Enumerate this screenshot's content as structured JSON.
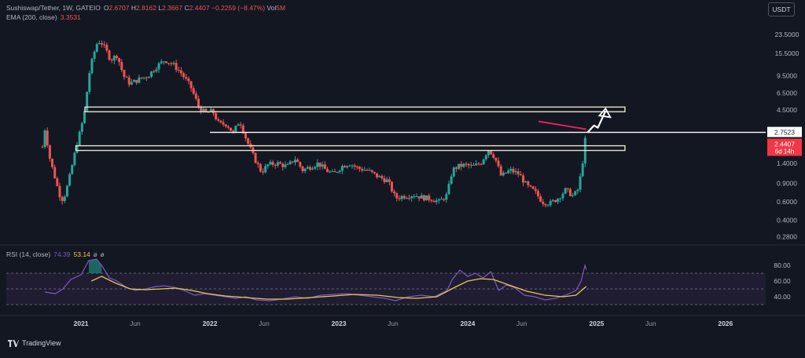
{
  "header": {
    "symbol": "Sushiswap/Tether, 1W, GATEIO",
    "ohlc": [
      {
        "k": "O",
        "v": "2.6707"
      },
      {
        "k": "H",
        "v": "2.8162"
      },
      {
        "k": "L",
        "v": "2.3667"
      },
      {
        "k": "C",
        "v": "2.4407"
      },
      {
        "k": "",
        "v": "−0.2259 (−8.47%)"
      },
      {
        "k": "Vol",
        "v": "5M"
      }
    ],
    "ema_label": "EMA (200, close)",
    "ema_value": "3.3531",
    "currency": "USDT"
  },
  "brand": {
    "name": "TradingView"
  },
  "colors": {
    "background": "#131722",
    "up": "#26a69a",
    "down": "#ef5350",
    "rsi_line": "#7e57c2",
    "rsi_ma": "#e7c74c",
    "rsi_band": "#2a2140",
    "level_line": "#ffffff",
    "annotation_line": "#e91e63",
    "price_tag_red": "#f23645"
  },
  "chart_data": [
    {
      "type": "candlestick",
      "title": "Sushiswap/Tether, 1W, GATEIO",
      "y_scale": "log",
      "y_ticks": [
        "23.5000",
        "15.5000",
        "9.5000",
        "6.5000",
        "4.5000",
        "2.7523",
        "1.4000",
        "0.9000",
        "0.6000",
        "0.4000",
        "0.2800"
      ],
      "x_ticks": [
        "2021",
        "Jun",
        "2022",
        "Jun",
        "2023",
        "Jun",
        "2024",
        "Jun",
        "2025",
        "Jun",
        "2026"
      ],
      "x_tick_dates": [
        2021.0,
        2021.42,
        2022.0,
        2022.42,
        2023.0,
        2023.42,
        2024.0,
        2024.42,
        2025.0,
        2025.42,
        2026.0
      ],
      "ylim": [
        0.25,
        32
      ],
      "xlim": [
        2020.42,
        2026.3
      ],
      "price_points": [
        [
          2020.7,
          2.0
        ],
        [
          2020.72,
          3.0
        ],
        [
          2020.76,
          1.5
        ],
        [
          2020.8,
          1.0
        ],
        [
          2020.83,
          0.72
        ],
        [
          2020.86,
          0.62
        ],
        [
          2020.9,
          0.9
        ],
        [
          2020.94,
          1.5
        ],
        [
          2020.97,
          2.2
        ],
        [
          2021.0,
          3.0
        ],
        [
          2021.03,
          4.5
        ],
        [
          2021.06,
          9.5
        ],
        [
          2021.09,
          14
        ],
        [
          2021.12,
          19
        ],
        [
          2021.15,
          20.5
        ],
        [
          2021.19,
          17
        ],
        [
          2021.23,
          13.5
        ],
        [
          2021.28,
          15
        ],
        [
          2021.33,
          9.5
        ],
        [
          2021.38,
          8.0
        ],
        [
          2021.45,
          8.8
        ],
        [
          2021.52,
          9.5
        ],
        [
          2021.58,
          11.5
        ],
        [
          2021.65,
          13.5
        ],
        [
          2021.72,
          12.0
        ],
        [
          2021.78,
          10.0
        ],
        [
          2021.85,
          7.5
        ],
        [
          2021.92,
          4.6
        ],
        [
          2021.97,
          4.2
        ],
        [
          2022.02,
          4.4
        ],
        [
          2022.07,
          3.3
        ],
        [
          2022.13,
          3.3
        ],
        [
          2022.18,
          2.7
        ],
        [
          2022.23,
          3.6
        ],
        [
          2022.28,
          2.4
        ],
        [
          2022.34,
          1.6
        ],
        [
          2022.4,
          1.15
        ],
        [
          2022.45,
          1.35
        ],
        [
          2022.52,
          1.4
        ],
        [
          2022.6,
          1.3
        ],
        [
          2022.66,
          1.55
        ],
        [
          2022.72,
          1.2
        ],
        [
          2022.78,
          1.3
        ],
        [
          2022.84,
          1.4
        ],
        [
          2022.9,
          1.2
        ],
        [
          2022.96,
          1.1
        ],
        [
          2023.02,
          1.3
        ],
        [
          2023.08,
          1.4
        ],
        [
          2023.15,
          1.25
        ],
        [
          2023.22,
          1.2
        ],
        [
          2023.3,
          1.05
        ],
        [
          2023.38,
          0.95
        ],
        [
          2023.44,
          0.65
        ],
        [
          2023.5,
          0.68
        ],
        [
          2023.58,
          0.7
        ],
        [
          2023.65,
          0.66
        ],
        [
          2023.72,
          0.64
        ],
        [
          2023.78,
          0.6
        ],
        [
          2023.84,
          0.7
        ],
        [
          2023.88,
          1.2
        ],
        [
          2023.92,
          1.3
        ],
        [
          2023.98,
          1.35
        ],
        [
          2024.04,
          1.3
        ],
        [
          2024.1,
          1.4
        ],
        [
          2024.16,
          1.9
        ],
        [
          2024.21,
          1.6
        ],
        [
          2024.26,
          1.05
        ],
        [
          2024.33,
          1.2
        ],
        [
          2024.4,
          1.1
        ],
        [
          2024.46,
          0.85
        ],
        [
          2024.52,
          0.75
        ],
        [
          2024.58,
          0.6
        ],
        [
          2024.64,
          0.58
        ],
        [
          2024.7,
          0.65
        ],
        [
          2024.76,
          0.78
        ],
        [
          2024.82,
          0.68
        ],
        [
          2024.86,
          0.8
        ],
        [
          2024.89,
          1.4
        ],
        [
          2024.92,
          2.44
        ]
      ],
      "ema_200": {
        "label": "EMA (200, close)",
        "last": 3.3531
      },
      "last_price": {
        "value": "2.4407",
        "countdown": "6d 14h"
      },
      "horizontal_levels": [
        {
          "price": 4.55,
          "x0": 2021.03,
          "x1": 2025.22,
          "style": "box"
        },
        {
          "price": 2.7523,
          "x0": 2022.0,
          "x1": 2026.3,
          "style": "line",
          "label": "2.7523"
        },
        {
          "price": 1.95,
          "x0": 2020.96,
          "x1": 2025.22,
          "style": "box"
        }
      ],
      "annotation_line": {
        "from": [
          2024.55,
          3.5
        ],
        "to": [
          2024.92,
          2.95
        ]
      },
      "arrow": {
        "points": [
          [
            2024.93,
            2.75
          ],
          [
            2024.98,
            3.2
          ],
          [
            2025.01,
            3.05
          ],
          [
            2025.07,
            4.4
          ]
        ]
      }
    },
    {
      "type": "line",
      "title": "RSI (14, close)",
      "legend": [
        {
          "name": "RSI (14, close)",
          "value": "74.39"
        },
        {
          "name": "",
          "value": "53.14"
        }
      ],
      "y_ticks": [
        "80.00",
        "60.00",
        "40.00"
      ],
      "ylim": [
        20,
        100
      ],
      "bands": [
        30,
        50,
        70
      ],
      "series": [
        {
          "name": "RSI",
          "points": [
            [
              2020.72,
              46
            ],
            [
              2020.8,
              44
            ],
            [
              2020.86,
              50
            ],
            [
              2020.92,
              62
            ],
            [
              2021.0,
              68
            ],
            [
              2021.06,
              86
            ],
            [
              2021.12,
              88
            ],
            [
              2021.16,
              80
            ],
            [
              2021.22,
              64
            ],
            [
              2021.28,
              60
            ],
            [
              2021.35,
              52
            ],
            [
              2021.42,
              48
            ],
            [
              2021.5,
              50
            ],
            [
              2021.58,
              53
            ],
            [
              2021.65,
              54
            ],
            [
              2021.72,
              52
            ],
            [
              2021.8,
              48
            ],
            [
              2021.88,
              42
            ],
            [
              2021.96,
              44
            ],
            [
              2022.04,
              42
            ],
            [
              2022.12,
              40
            ],
            [
              2022.2,
              38
            ],
            [
              2022.28,
              40
            ],
            [
              2022.36,
              36
            ],
            [
              2022.46,
              35
            ],
            [
              2022.56,
              37
            ],
            [
              2022.66,
              40
            ],
            [
              2022.76,
              38
            ],
            [
              2022.86,
              42
            ],
            [
              2022.96,
              43
            ],
            [
              2023.06,
              44
            ],
            [
              2023.16,
              42
            ],
            [
              2023.26,
              40
            ],
            [
              2023.36,
              38
            ],
            [
              2023.44,
              35
            ],
            [
              2023.54,
              40
            ],
            [
              2023.64,
              42
            ],
            [
              2023.74,
              40
            ],
            [
              2023.84,
              48
            ],
            [
              2023.88,
              62
            ],
            [
              2023.94,
              74
            ],
            [
              2024.0,
              66
            ],
            [
              2024.06,
              70
            ],
            [
              2024.12,
              64
            ],
            [
              2024.18,
              72
            ],
            [
              2024.24,
              48
            ],
            [
              2024.3,
              55
            ],
            [
              2024.36,
              52
            ],
            [
              2024.44,
              42
            ],
            [
              2024.52,
              40
            ],
            [
              2024.6,
              36
            ],
            [
              2024.68,
              38
            ],
            [
              2024.76,
              42
            ],
            [
              2024.84,
              48
            ],
            [
              2024.88,
              60
            ],
            [
              2024.91,
              80
            ],
            [
              2024.92,
              74.39
            ]
          ]
        },
        {
          "name": "RSI MA",
          "points": [
            [
              2021.08,
              60
            ],
            [
              2021.16,
              66
            ],
            [
              2021.26,
              58
            ],
            [
              2021.38,
              50
            ],
            [
              2021.5,
              49
            ],
            [
              2021.62,
              50
            ],
            [
              2021.74,
              51
            ],
            [
              2021.86,
              48
            ],
            [
              2021.98,
              44
            ],
            [
              2022.12,
              41
            ],
            [
              2022.28,
              39
            ],
            [
              2022.44,
              37
            ],
            [
              2022.6,
              37
            ],
            [
              2022.78,
              39
            ],
            [
              2022.96,
              41
            ],
            [
              2023.12,
              43
            ],
            [
              2023.3,
              42
            ],
            [
              2023.46,
              39
            ],
            [
              2023.6,
              38
            ],
            [
              2023.76,
              40
            ],
            [
              2023.9,
              52
            ],
            [
              2024.0,
              60
            ],
            [
              2024.1,
              63
            ],
            [
              2024.2,
              62
            ],
            [
              2024.32,
              55
            ],
            [
              2024.46,
              47
            ],
            [
              2024.6,
              42
            ],
            [
              2024.74,
              40
            ],
            [
              2024.84,
              42
            ],
            [
              2024.92,
              53.14
            ]
          ]
        }
      ]
    }
  ]
}
